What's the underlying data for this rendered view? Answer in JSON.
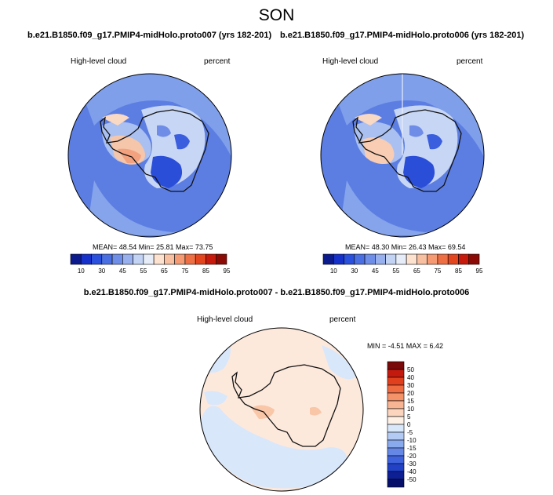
{
  "page": {
    "season": "SON",
    "panels": [
      {
        "run_title": "b.e21.B1850.f09_g17.PMIP4-midHolo.proto007 (yrs 182-201)",
        "variable": "High-level cloud",
        "units": "percent",
        "stats": "MEAN= 48.54  Min= 25.81  Max= 73.75"
      },
      {
        "run_title": "b.e21.B1850.f09_g17.PMIP4-midHolo.proto006 (yrs 182-201)",
        "variable": "High-level cloud",
        "units": "percent",
        "stats": "MEAN= 48.30  Min= 26.43  Max= 69.54"
      }
    ],
    "difference": {
      "title": "b.e21.B1850.f09_g17.PMIP4-midHolo.proto007 - b.e21.B1850.f09_g17.PMIP4-midHolo.proto006",
      "variable": "High-level cloud",
      "units": "percent",
      "stats": "MIN =  -4.51 MAX =   6.42"
    }
  },
  "chart_data": [
    {
      "type": "heatmap",
      "projection": "south-polar stereographic",
      "title": "b.e21.B1850.f09_g17.PMIP4-midHolo.proto007 (yrs 182-201)",
      "variable": "High-level cloud",
      "units": "percent",
      "mean": 48.54,
      "min": 25.81,
      "max": 73.75,
      "colorbar_ticks": [
        10,
        30,
        45,
        55,
        65,
        75,
        85,
        95
      ],
      "colorbar_colors": [
        "#0b1a8c",
        "#1631c9",
        "#2a50dd",
        "#4a6fe3",
        "#6e8ee8",
        "#98b0ee",
        "#c3d3f4",
        "#e6edf8",
        "#fde2cf",
        "#f9bfa1",
        "#f59a72",
        "#ef6f45",
        "#e3451f",
        "#c81a0c",
        "#8c0a05"
      ],
      "colorbar_orientation": "horizontal",
      "colorbar_placement": "below"
    },
    {
      "type": "heatmap",
      "projection": "south-polar stereographic",
      "title": "b.e21.B1850.f09_g17.PMIP4-midHolo.proto006 (yrs 182-201)",
      "variable": "High-level cloud",
      "units": "percent",
      "mean": 48.3,
      "min": 26.43,
      "max": 69.54,
      "colorbar_ticks": [
        10,
        30,
        45,
        55,
        65,
        75,
        85,
        95
      ],
      "colorbar_colors": [
        "#0b1a8c",
        "#1631c9",
        "#2a50dd",
        "#4a6fe3",
        "#6e8ee8",
        "#98b0ee",
        "#c3d3f4",
        "#e6edf8",
        "#fde2cf",
        "#f9bfa1",
        "#f59a72",
        "#ef6f45",
        "#e3451f",
        "#c81a0c",
        "#8c0a05"
      ],
      "colorbar_orientation": "horizontal",
      "colorbar_placement": "below"
    },
    {
      "type": "heatmap",
      "projection": "south-polar stereographic",
      "title": "b.e21.B1850.f09_g17.PMIP4-midHolo.proto007 - b.e21.B1850.f09_g17.PMIP4-midHolo.proto006",
      "variable": "High-level cloud",
      "units": "percent",
      "min": -4.51,
      "max": 6.42,
      "colorbar_ticks": [
        50,
        40,
        30,
        20,
        15,
        10,
        5,
        0,
        -5,
        -10,
        -15,
        -20,
        -30,
        -40,
        -50
      ],
      "colorbar_colors": [
        "#7a0a0a",
        "#c41a0e",
        "#e0401d",
        "#ef6b42",
        "#f4926a",
        "#f8b593",
        "#fbd5bd",
        "#fdf1e6",
        "#d9e7fb",
        "#b3cbf4",
        "#8aaaee",
        "#6588e6",
        "#3f63dd",
        "#2142c7",
        "#0e1f96",
        "#06106a"
      ],
      "colorbar_orientation": "vertical",
      "colorbar_placement": "right"
    }
  ]
}
